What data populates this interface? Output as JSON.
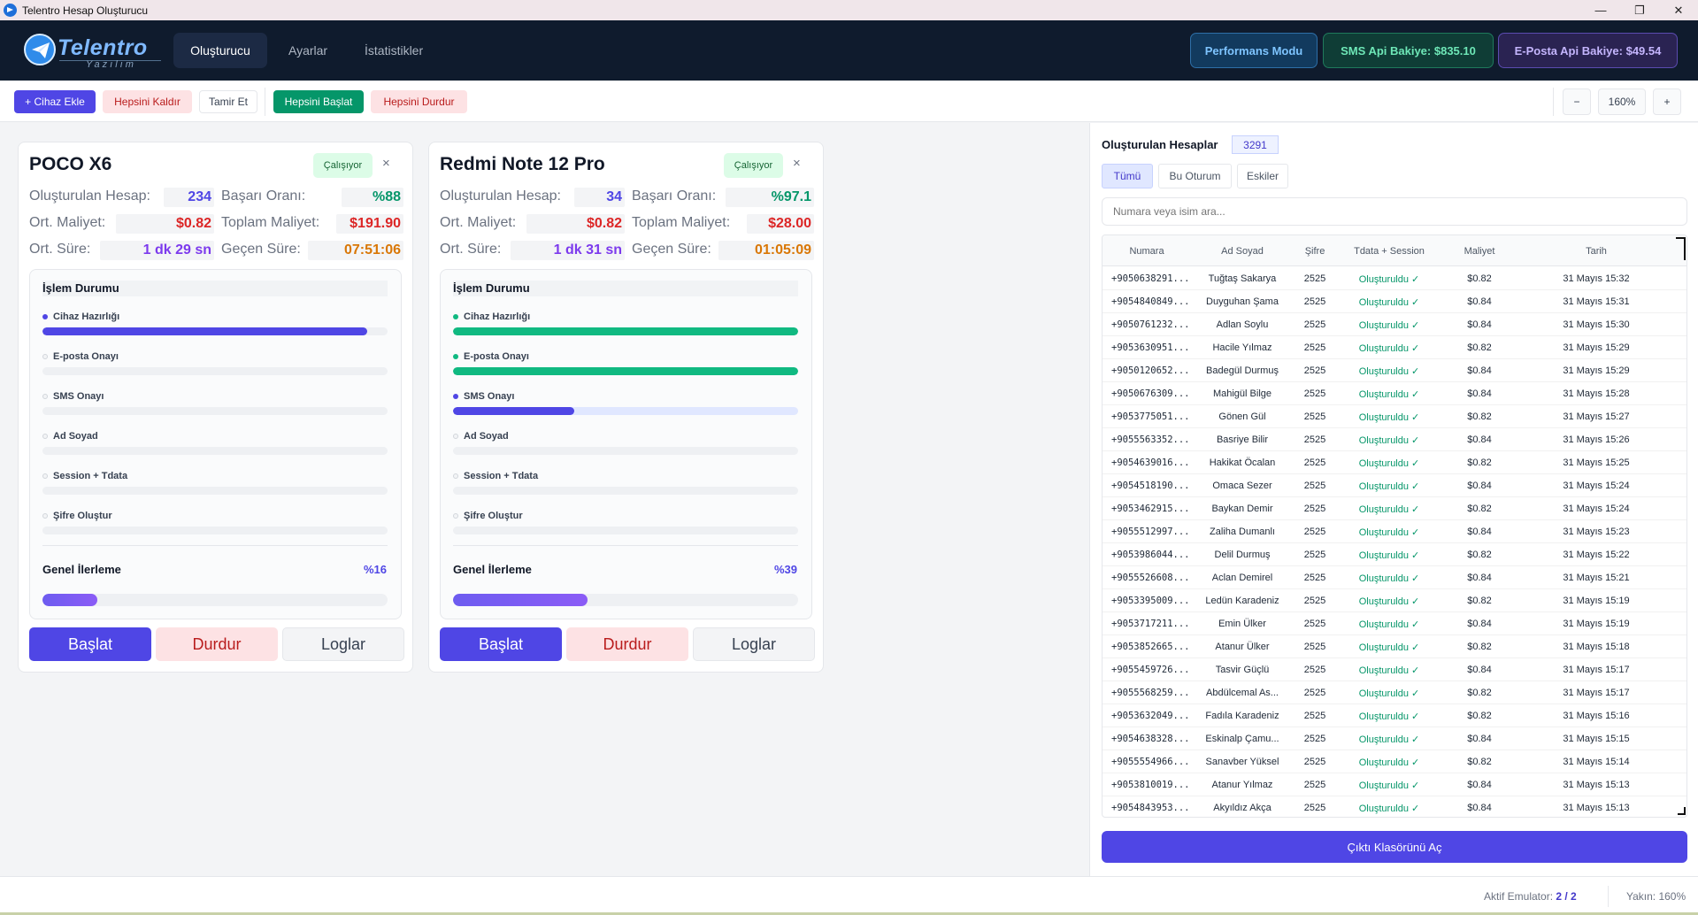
{
  "window": {
    "title": "Telentro Hesap Oluşturucu",
    "controls": [
      "—",
      "❐",
      "✕"
    ]
  },
  "header": {
    "logo_title": "Telentro",
    "logo_subtitle": "Yazılım",
    "tabs": [
      {
        "label": "Oluşturucu",
        "active": true
      },
      {
        "label": "Ayarlar",
        "active": false
      },
      {
        "label": "İstatistikler",
        "active": false
      }
    ],
    "performance_mode": "Performans Modu",
    "sms_balance": "SMS Api Bakiye: $835.10",
    "email_balance": "E-Posta Api Bakiye: $49.54"
  },
  "toolbar": {
    "add_device": "+ Cihaz Ekle",
    "remove_all": "Hepsini Kaldır",
    "repair": "Tamir Et",
    "start_all": "Hepsini Başlat",
    "stop_all": "Hepsini Durdur",
    "zoom_out": "−",
    "zoom_level": "160%",
    "zoom_in": "+"
  },
  "labels": {
    "created": "Oluşturulan Hesap:",
    "success_rate": "Başarı Oranı:",
    "avg_cost": "Ort. Maliyet:",
    "total_cost": "Toplam Maliyet:",
    "avg_time": "Ort. Süre:",
    "elapsed": "Geçen Süre:",
    "process_status": "İşlem Durumu",
    "overall_progress": "Genel İlerleme",
    "start": "Başlat",
    "stop": "Durdur",
    "logs": "Loglar",
    "close": "×"
  },
  "devices": [
    {
      "name": "POCO X6",
      "status": "Çalışıyor",
      "created": "234",
      "success_rate": "%88",
      "avg_cost": "$0.82",
      "total_cost": "$191.90",
      "avg_time": "1 dk 29 sn",
      "elapsed": "07:51:06",
      "steps": [
        {
          "label": "Cihaz Hazırlığı",
          "progress": 0.94,
          "state": "active"
        },
        {
          "label": "E-posta Onayı",
          "progress": 0,
          "state": "pending"
        },
        {
          "label": "SMS Onayı",
          "progress": 0,
          "state": "pending"
        },
        {
          "label": "Ad Soyad",
          "progress": 0,
          "state": "pending"
        },
        {
          "label": "Session + Tdata",
          "progress": 0,
          "state": "pending"
        },
        {
          "label": "Şifre Oluştur",
          "progress": 0,
          "state": "pending"
        }
      ],
      "overall_pct": "%16",
      "overall_progress": 0.16
    },
    {
      "name": "Redmi Note 12 Pro",
      "status": "Çalışıyor",
      "created": "34",
      "success_rate": "%97.1",
      "avg_cost": "$0.82",
      "total_cost": "$28.00",
      "avg_time": "1 dk 31 sn",
      "elapsed": "01:05:09",
      "steps": [
        {
          "label": "Cihaz Hazırlığı",
          "progress": 1.0,
          "state": "done"
        },
        {
          "label": "E-posta Onayı",
          "progress": 1.0,
          "state": "done"
        },
        {
          "label": "SMS Onayı",
          "progress": 0.35,
          "state": "active"
        },
        {
          "label": "Ad Soyad",
          "progress": 0,
          "state": "pending"
        },
        {
          "label": "Session + Tdata",
          "progress": 0,
          "state": "pending"
        },
        {
          "label": "Şifre Oluştur",
          "progress": 0,
          "state": "pending"
        }
      ],
      "overall_pct": "%39",
      "overall_progress": 0.39
    }
  ],
  "accounts_panel": {
    "title": "Oluşturulan Hesaplar",
    "count": "3291",
    "tabs": [
      {
        "label": "Tümü",
        "active": true
      },
      {
        "label": "Bu Oturum",
        "active": false
      },
      {
        "label": "Eskiler",
        "active": false
      }
    ],
    "search_placeholder": "Numara veya isim ara...",
    "columns": [
      "Numara",
      "Ad Soyad",
      "Şifre",
      "Tdata + Session",
      "Maliyet",
      "Tarih"
    ],
    "rows": [
      [
        "+9050638291...",
        "Tuğtaş Sakarya",
        "2525",
        "Oluşturuldu ✓",
        "$0.82",
        "31 Mayıs 15:32"
      ],
      [
        "+9054840849...",
        "Duyguhan Şama",
        "2525",
        "Oluşturuldu ✓",
        "$0.84",
        "31 Mayıs 15:31"
      ],
      [
        "+9050761232...",
        "Adlan Soylu",
        "2525",
        "Oluşturuldu ✓",
        "$0.84",
        "31 Mayıs 15:30"
      ],
      [
        "+9053630951...",
        "Hacile Yılmaz",
        "2525",
        "Oluşturuldu ✓",
        "$0.82",
        "31 Mayıs 15:29"
      ],
      [
        "+9050120652...",
        "Badegül Durmuş",
        "2525",
        "Oluşturuldu ✓",
        "$0.84",
        "31 Mayıs 15:29"
      ],
      [
        "+9050676309...",
        "Mahigül Bilge",
        "2525",
        "Oluşturuldu ✓",
        "$0.84",
        "31 Mayıs 15:28"
      ],
      [
        "+9053775051...",
        "Gönen Gül",
        "2525",
        "Oluşturuldu ✓",
        "$0.82",
        "31 Mayıs 15:27"
      ],
      [
        "+9055563352...",
        "Basriye Bilir",
        "2525",
        "Oluşturuldu ✓",
        "$0.84",
        "31 Mayıs 15:26"
      ],
      [
        "+9054639016...",
        "Hakikat Öcalan",
        "2525",
        "Oluşturuldu ✓",
        "$0.82",
        "31 Mayıs 15:25"
      ],
      [
        "+9054518190...",
        "Omaca Sezer",
        "2525",
        "Oluşturuldu ✓",
        "$0.84",
        "31 Mayıs 15:24"
      ],
      [
        "+9053462915...",
        "Baykan Demir",
        "2525",
        "Oluşturuldu ✓",
        "$0.82",
        "31 Mayıs 15:24"
      ],
      [
        "+9055512997...",
        "Zaliha Dumanlı",
        "2525",
        "Oluşturuldu ✓",
        "$0.84",
        "31 Mayıs 15:23"
      ],
      [
        "+9053986044...",
        "Delil Durmuş",
        "2525",
        "Oluşturuldu ✓",
        "$0.82",
        "31 Mayıs 15:22"
      ],
      [
        "+9055526608...",
        "Aclan Demirel",
        "2525",
        "Oluşturuldu ✓",
        "$0.84",
        "31 Mayıs 15:21"
      ],
      [
        "+9053395009...",
        "Ledün Karadeniz",
        "2525",
        "Oluşturuldu ✓",
        "$0.82",
        "31 Mayıs 15:19"
      ],
      [
        "+9053717211...",
        "Emin Ülker",
        "2525",
        "Oluşturuldu ✓",
        "$0.84",
        "31 Mayıs 15:19"
      ],
      [
        "+9053852665...",
        "Atanur Ülker",
        "2525",
        "Oluşturuldu ✓",
        "$0.82",
        "31 Mayıs 15:18"
      ],
      [
        "+9055459726...",
        "Tasvir Güçlü",
        "2525",
        "Oluşturuldu ✓",
        "$0.84",
        "31 Mayıs 15:17"
      ],
      [
        "+9055568259...",
        "Abdülcemal As...",
        "2525",
        "Oluşturuldu ✓",
        "$0.82",
        "31 Mayıs 15:17"
      ],
      [
        "+9053632049...",
        "Fadıla Karadeniz",
        "2525",
        "Oluşturuldu ✓",
        "$0.82",
        "31 Mayıs 15:16"
      ],
      [
        "+9054638328...",
        "Eskinalp Çamu...",
        "2525",
        "Oluşturuldu ✓",
        "$0.84",
        "31 Mayıs 15:15"
      ],
      [
        "+9055554966...",
        "Sanavber Yüksel",
        "2525",
        "Oluşturuldu ✓",
        "$0.82",
        "31 Mayıs 15:14"
      ],
      [
        "+9053810019...",
        "Atanur Yılmaz",
        "2525",
        "Oluşturuldu ✓",
        "$0.84",
        "31 Mayıs 15:13"
      ],
      [
        "+9054843953...",
        "Akyıldız Akça",
        "2525",
        "Oluşturuldu ✓",
        "$0.84",
        "31 Mayıs 15:13"
      ]
    ],
    "open_folder": "Çıktı Klasörünü Aç"
  },
  "statusbar": {
    "active_label": "Aktif Emulator:",
    "active_value": "2 / 2",
    "zoom_text": "Yakın: 160%"
  },
  "colors": {
    "accent": "#4f46e5",
    "header_bg": "#0f1b2d",
    "success": "#059669",
    "danger": "#dc2626",
    "purple": "#7c3aed",
    "orange": "#d97706"
  }
}
